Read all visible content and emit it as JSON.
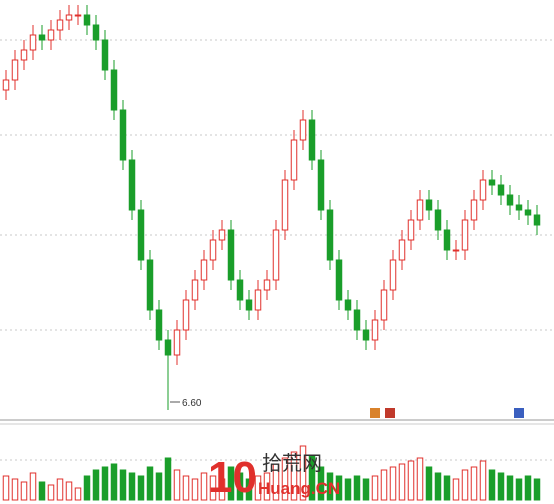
{
  "chart_data": {
    "type": "candlestick",
    "annotation": "6.60",
    "logo": {
      "number": "10",
      "name": "拾荒网",
      "site": "Huang.CN"
    },
    "up_color": "#e0302c",
    "down_color": "#1a9e2a",
    "ylim": [
      6.4,
      10.7
    ],
    "open": [
      9.8,
      9.9,
      10.1,
      10.2,
      10.35,
      10.3,
      10.4,
      10.5,
      10.55,
      10.55,
      10.45,
      10.3,
      10.0,
      9.6,
      9.1,
      8.6,
      8.1,
      7.6,
      7.3,
      7.15,
      7.4,
      7.7,
      7.9,
      8.1,
      8.3,
      8.4,
      7.9,
      7.7,
      7.6,
      7.8,
      7.9,
      8.4,
      8.9,
      9.3,
      9.5,
      9.1,
      8.6,
      8.1,
      7.7,
      7.6,
      7.4,
      7.3,
      7.5,
      7.8,
      8.1,
      8.3,
      8.5,
      8.7,
      8.6,
      8.4,
      8.2,
      8.2,
      8.5,
      8.7,
      8.9,
      8.85,
      8.75,
      8.65,
      8.6,
      8.55
    ],
    "high": [
      10.0,
      10.2,
      10.3,
      10.45,
      10.45,
      10.5,
      10.6,
      10.65,
      10.65,
      10.65,
      10.55,
      10.4,
      10.1,
      9.7,
      9.2,
      8.7,
      8.2,
      7.7,
      7.4,
      7.5,
      7.8,
      8.0,
      8.2,
      8.4,
      8.5,
      8.5,
      8.0,
      7.8,
      7.9,
      8.0,
      8.5,
      9.0,
      9.4,
      9.6,
      9.6,
      9.2,
      8.7,
      8.2,
      7.8,
      7.7,
      7.5,
      7.6,
      7.9,
      8.2,
      8.4,
      8.6,
      8.8,
      8.8,
      8.7,
      8.5,
      8.3,
      8.6,
      8.8,
      9.0,
      9.0,
      8.95,
      8.85,
      8.75,
      8.7,
      8.65
    ],
    "low": [
      9.7,
      9.8,
      10.0,
      10.1,
      10.2,
      10.2,
      10.3,
      10.4,
      10.45,
      10.35,
      10.2,
      9.9,
      9.5,
      9.0,
      8.5,
      8.0,
      7.5,
      7.2,
      6.6,
      7.05,
      7.3,
      7.6,
      7.8,
      8.0,
      8.2,
      7.8,
      7.6,
      7.5,
      7.5,
      7.7,
      7.8,
      8.3,
      8.8,
      9.2,
      9.0,
      8.5,
      8.0,
      7.6,
      7.5,
      7.3,
      7.2,
      7.2,
      7.4,
      7.7,
      8.0,
      8.2,
      8.4,
      8.5,
      8.3,
      8.1,
      8.1,
      8.1,
      8.4,
      8.6,
      8.75,
      8.65,
      8.55,
      8.5,
      8.45,
      8.35
    ],
    "close": [
      9.9,
      10.1,
      10.2,
      10.35,
      10.3,
      10.4,
      10.5,
      10.55,
      10.55,
      10.45,
      10.3,
      10.0,
      9.6,
      9.1,
      8.6,
      8.1,
      7.6,
      7.3,
      7.15,
      7.4,
      7.7,
      7.9,
      8.1,
      8.3,
      8.4,
      7.9,
      7.7,
      7.6,
      7.8,
      7.9,
      8.4,
      8.9,
      9.3,
      9.5,
      9.1,
      8.6,
      8.1,
      7.7,
      7.6,
      7.4,
      7.3,
      7.5,
      7.8,
      8.1,
      8.3,
      8.5,
      8.7,
      8.6,
      8.4,
      8.2,
      8.2,
      8.5,
      8.7,
      8.9,
      8.85,
      8.75,
      8.65,
      8.6,
      8.55,
      8.45
    ],
    "volume": [
      40,
      35,
      30,
      45,
      30,
      25,
      35,
      30,
      20,
      40,
      50,
      55,
      60,
      50,
      45,
      40,
      55,
      45,
      70,
      50,
      40,
      35,
      45,
      40,
      35,
      55,
      45,
      35,
      40,
      45,
      60,
      70,
      80,
      90,
      75,
      55,
      45,
      40,
      35,
      40,
      35,
      40,
      50,
      55,
      60,
      65,
      70,
      55,
      45,
      40,
      35,
      50,
      55,
      65,
      50,
      45,
      40,
      35,
      40,
      35
    ],
    "volume_lim": [
      0,
      100
    ]
  }
}
